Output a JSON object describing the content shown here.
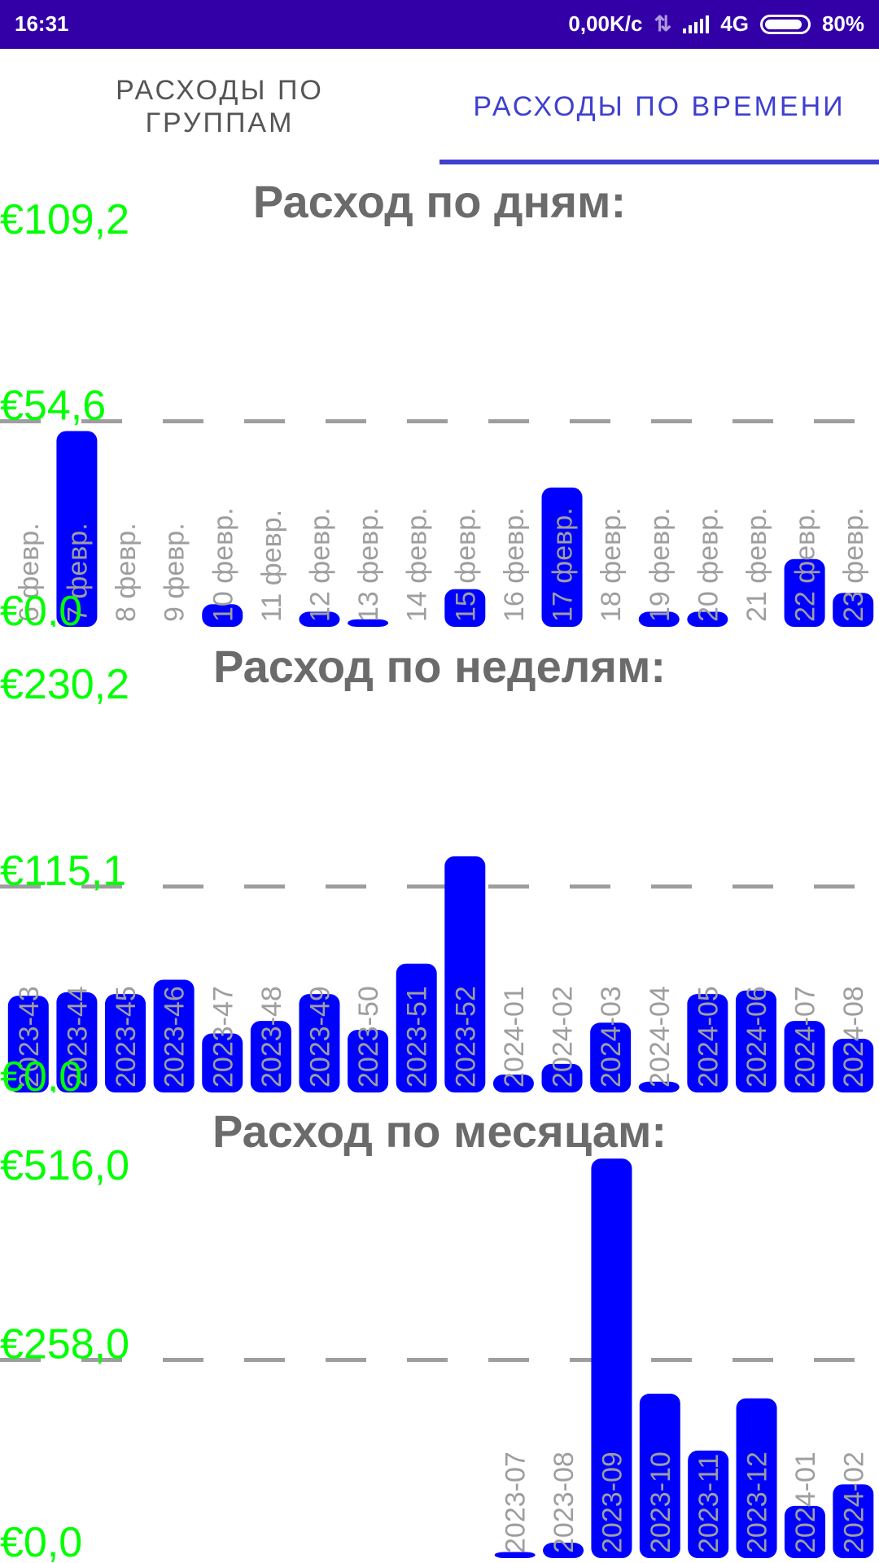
{
  "status_bar": {
    "time": "16:31",
    "net_speed": "0,00K/c",
    "network": "4G",
    "battery": "80%"
  },
  "tabs": [
    {
      "label": "РАСХОДЫ ПО\nГРУППАМ",
      "active": false
    },
    {
      "label": "РАСХОДЫ ПО ВРЕМЕНИ",
      "active": true
    }
  ],
  "colors": {
    "bar": "#0000ff",
    "axis_label": "#00ff00",
    "grid": "#9e9e9e",
    "tab_active": "#3f3fd0",
    "status_bar": "#3300a8"
  },
  "chart_data": [
    {
      "type": "bar",
      "title": "Расход по дням:",
      "ylim": [
        0,
        109.2
      ],
      "y_ticks": [
        "€109,2",
        "€54,6",
        "€0,0"
      ],
      "categories": [
        "6 февр.",
        "7 февр.",
        "8 февр.",
        "9 февр.",
        "10 февр.",
        "11 февр.",
        "12 февр.",
        "13 февр.",
        "14 февр.",
        "15 февр.",
        "16 февр.",
        "17 февр.",
        "18 февр.",
        "19 февр.",
        "20 февр.",
        "21 февр.",
        "22 февр.",
        "23 февр."
      ],
      "values": [
        0,
        52,
        0,
        0,
        6,
        0,
        4,
        2,
        0,
        10,
        0,
        37,
        0,
        4,
        4,
        0,
        18,
        9
      ]
    },
    {
      "type": "bar",
      "title": "Расход по неделям:",
      "ylim": [
        0,
        230.2
      ],
      "y_ticks": [
        "€230,2",
        "€115,1",
        "€0,0"
      ],
      "categories": [
        "2023-43",
        "2023-44",
        "2023-45",
        "2023-46",
        "2023-47",
        "2023-48",
        "2023-49",
        "2023-50",
        "2023-51",
        "2023-52",
        "2024-01",
        "2024-02",
        "2024-03",
        "2024-04",
        "2024-05",
        "2024-06",
        "2024-07",
        "2024-08"
      ],
      "values": [
        54,
        56,
        55,
        63,
        33,
        40,
        55,
        35,
        72,
        132,
        10,
        16,
        39,
        6,
        55,
        57,
        40,
        30
      ]
    },
    {
      "type": "bar",
      "title": "Расход по месяцам:",
      "ylim": [
        0,
        516.0
      ],
      "y_ticks": [
        "€516,0",
        "€258,0",
        "€0,0"
      ],
      "categories": [
        "2023-07",
        "2023-08",
        "2023-09",
        "2023-10",
        "2023-11",
        "2023-12",
        "2024-01",
        "2024-02"
      ],
      "values": [
        8,
        20,
        520,
        214,
        140,
        208,
        68,
        96
      ]
    }
  ]
}
